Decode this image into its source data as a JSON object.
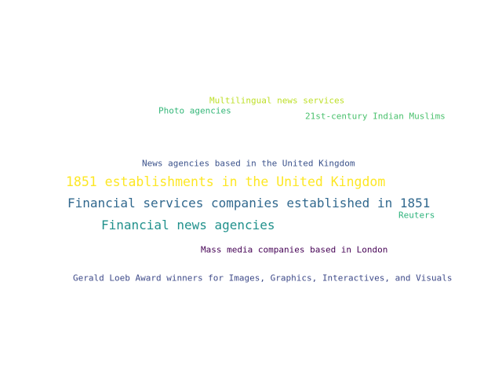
{
  "word_cloud": {
    "words": [
      {
        "text": "Multilingual news services",
        "color": "#bddf26"
      },
      {
        "text": "Photo agencies",
        "color": "#35b779"
      },
      {
        "text": "21st-century Indian Muslims",
        "color": "#4ac16d"
      },
      {
        "text": "News agencies based in the United Kingdom",
        "color": "#3b528b"
      },
      {
        "text": "1851 establishments in the United Kingdom",
        "color": "#fde725"
      },
      {
        "text": "Financial services companies established in 1851",
        "color": "#31688e"
      },
      {
        "text": "Reuters",
        "color": "#2eb37c"
      },
      {
        "text": "Financial news agencies",
        "color": "#21918c"
      },
      {
        "text": "Mass media companies based in London",
        "color": "#440154"
      },
      {
        "text": "Gerald Loeb Award winners for Images, Graphics, Interactives, and Visuals",
        "color": "#3e4a89"
      }
    ]
  }
}
